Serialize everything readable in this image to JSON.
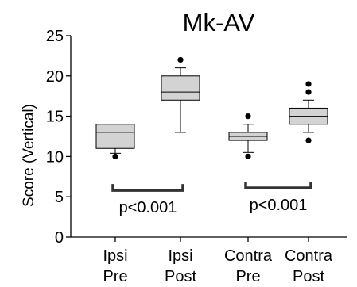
{
  "chart_data": {
    "type": "box",
    "title": "Mk-AV",
    "ylabel": "Score (Vertical)",
    "xlabel": "",
    "ylim": [
      0,
      25
    ],
    "yticks": [
      0,
      5,
      10,
      15,
      20,
      25
    ],
    "grid": false,
    "box_fill": "#d3d3d3",
    "categories": [
      {
        "line1": "Ipsi",
        "line2": "Pre"
      },
      {
        "line1": "Ipsi",
        "line2": "Post"
      },
      {
        "line1": "Contra",
        "line2": "Pre"
      },
      {
        "line1": "Contra",
        "line2": "Post"
      }
    ],
    "boxes": [
      {
        "whisker_low": 10.4,
        "q1": 11,
        "median": 13,
        "q3": 14,
        "whisker_high": 14,
        "outliers": [
          10
        ]
      },
      {
        "whisker_low": 13,
        "q1": 17,
        "median": 18,
        "q3": 20,
        "whisker_high": 21,
        "outliers": [
          22
        ]
      },
      {
        "whisker_low": 10.5,
        "q1": 12,
        "median": 12.5,
        "q3": 13,
        "whisker_high": 14,
        "outliers": [
          10,
          15
        ]
      },
      {
        "whisker_low": 13,
        "q1": 14,
        "median": 15,
        "q3": 16,
        "whisker_high": 17,
        "outliers": [
          12,
          18,
          19
        ]
      }
    ],
    "comparisons": [
      {
        "from": 0,
        "to": 1,
        "y": 5.8,
        "label": "p<0.001"
      },
      {
        "from": 2,
        "to": 3,
        "y": 6.1,
        "label": "p<0.001"
      }
    ]
  }
}
